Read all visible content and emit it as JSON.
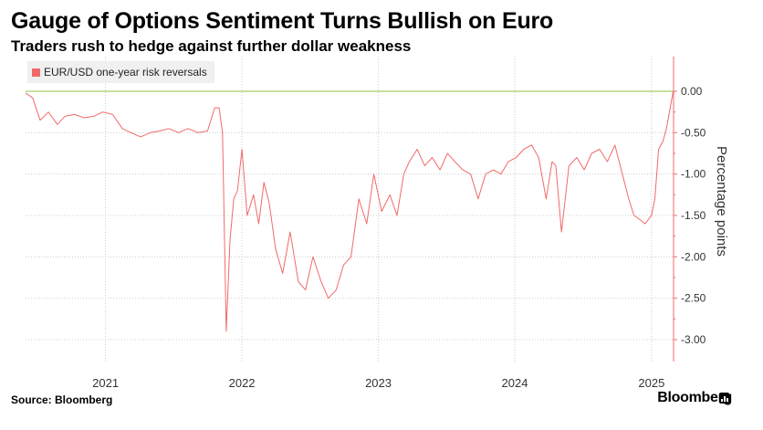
{
  "title": "Gauge of Options Sentiment Turns Bullish on Euro",
  "subtitle": "Traders rush to hedge against further dollar weakness",
  "source": "Source: Bloomberg",
  "brand": "Bloomberg",
  "icons": {
    "brand": "bloomberg-chart-icon"
  },
  "colors": {
    "series": "#f06a6a",
    "zero_line": "#8cc63f",
    "axis": "#f06a6a",
    "grid": "#cccccc"
  },
  "chart_data": {
    "type": "line",
    "ylabel": "Percentage points",
    "ylim": [
      -3.2,
      0.35
    ],
    "yticks": [
      "0.00",
      "-0.50",
      "-1.00",
      "-1.50",
      "-2.00",
      "-2.50",
      "-3.00"
    ],
    "ytick_values": [
      0,
      -0.5,
      -1.0,
      -1.5,
      -2.0,
      -2.5,
      -3.0
    ],
    "xlim": [
      "2020-06-01",
      "2025-03-01"
    ],
    "xticks": [
      "2021",
      "2022",
      "2023",
      "2024",
      "2025"
    ],
    "xtick_dates": [
      "2021-01-01",
      "2022-01-01",
      "2023-01-01",
      "2024-01-01",
      "2025-01-01"
    ],
    "reference_line": 0,
    "legend_position": "top-left",
    "grid": true,
    "series": [
      {
        "name": "EUR/USD one-year risk reversals",
        "x": [
          "2020-06-01",
          "2020-06-20",
          "2020-07-10",
          "2020-08-01",
          "2020-08-25",
          "2020-09-15",
          "2020-10-10",
          "2020-11-05",
          "2020-12-01",
          "2020-12-25",
          "2021-01-20",
          "2021-02-15",
          "2021-03-10",
          "2021-04-05",
          "2021-05-01",
          "2021-05-25",
          "2021-06-20",
          "2021-07-15",
          "2021-08-10",
          "2021-09-05",
          "2021-10-01",
          "2021-10-20",
          "2021-11-01",
          "2021-11-10",
          "2021-11-20",
          "2021-11-30",
          "2021-12-10",
          "2021-12-20",
          "2022-01-01",
          "2022-01-15",
          "2022-02-01",
          "2022-02-15",
          "2022-03-01",
          "2022-03-15",
          "2022-04-01",
          "2022-04-20",
          "2022-05-10",
          "2022-06-01",
          "2022-06-20",
          "2022-07-10",
          "2022-08-01",
          "2022-08-20",
          "2022-09-10",
          "2022-09-30",
          "2022-10-20",
          "2022-11-10",
          "2022-12-01",
          "2022-12-20",
          "2023-01-10",
          "2023-02-01",
          "2023-02-20",
          "2023-03-10",
          "2023-03-25",
          "2023-04-15",
          "2023-05-05",
          "2023-05-25",
          "2023-06-15",
          "2023-07-05",
          "2023-07-25",
          "2023-08-15",
          "2023-09-05",
          "2023-09-25",
          "2023-10-15",
          "2023-11-05",
          "2023-11-25",
          "2023-12-15",
          "2024-01-05",
          "2024-01-25",
          "2024-02-15",
          "2024-03-05",
          "2024-03-25",
          "2024-04-10",
          "2024-04-20",
          "2024-05-05",
          "2024-05-25",
          "2024-06-15",
          "2024-07-05",
          "2024-07-25",
          "2024-08-15",
          "2024-09-05",
          "2024-09-25",
          "2024-10-15",
          "2024-11-01",
          "2024-11-15",
          "2024-12-01",
          "2024-12-15",
          "2025-01-01",
          "2025-01-10",
          "2025-01-20",
          "2025-02-01",
          "2025-02-10",
          "2025-02-20",
          "2025-02-28"
        ],
        "values": [
          -0.02,
          -0.08,
          -0.35,
          -0.25,
          -0.4,
          -0.3,
          -0.28,
          -0.32,
          -0.3,
          -0.25,
          -0.28,
          -0.45,
          -0.5,
          -0.55,
          -0.5,
          -0.48,
          -0.45,
          -0.5,
          -0.45,
          -0.5,
          -0.48,
          -0.2,
          -0.2,
          -0.5,
          -2.9,
          -1.8,
          -1.3,
          -1.2,
          -0.7,
          -1.5,
          -1.25,
          -1.6,
          -1.1,
          -1.35,
          -1.9,
          -2.2,
          -1.7,
          -2.3,
          -2.4,
          -2.0,
          -2.3,
          -2.5,
          -2.4,
          -2.1,
          -2.0,
          -1.3,
          -1.6,
          -1.0,
          -1.45,
          -1.25,
          -1.5,
          -1.0,
          -0.85,
          -0.7,
          -0.9,
          -0.8,
          -0.95,
          -0.75,
          -0.85,
          -0.95,
          -1.0,
          -1.3,
          -1.0,
          -0.95,
          -1.0,
          -0.85,
          -0.8,
          -0.7,
          -0.65,
          -0.8,
          -1.3,
          -0.85,
          -0.9,
          -1.7,
          -0.9,
          -0.8,
          -0.95,
          -0.75,
          -0.7,
          -0.85,
          -0.65,
          -1.0,
          -1.3,
          -1.5,
          -1.55,
          -1.6,
          -1.5,
          -1.3,
          -0.7,
          -0.6,
          -0.45,
          -0.2,
          0.0
        ]
      }
    ]
  }
}
